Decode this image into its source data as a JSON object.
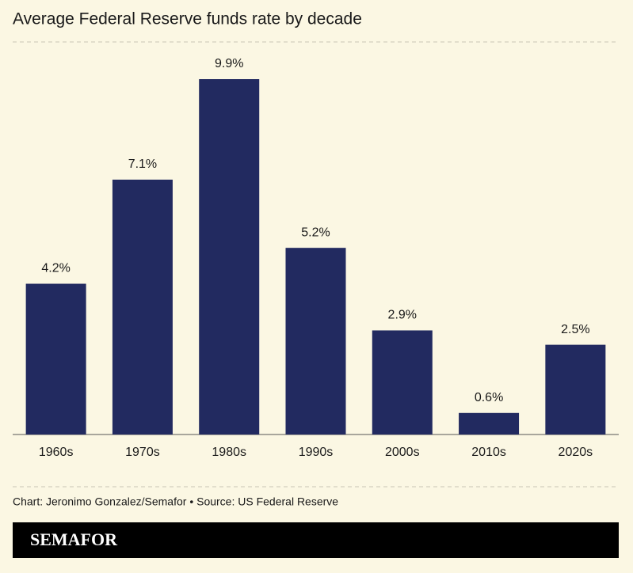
{
  "chart_data": {
    "type": "bar",
    "title": "Average Federal Reserve funds rate by decade",
    "categories": [
      "1960s",
      "1970s",
      "1980s",
      "1990s",
      "2000s",
      "2010s",
      "2020s"
    ],
    "values": [
      4.2,
      7.1,
      9.9,
      5.2,
      2.9,
      0.6,
      2.5
    ],
    "value_labels": [
      "4.2%",
      "7.1%",
      "9.9%",
      "5.2%",
      "2.9%",
      "0.6%",
      "2.5%"
    ],
    "color": "#222a60",
    "credit": "Chart: Jeronimo Gonzalez/Semafor • Source: US Federal Reserve",
    "brand": "SEMAFOR"
  }
}
